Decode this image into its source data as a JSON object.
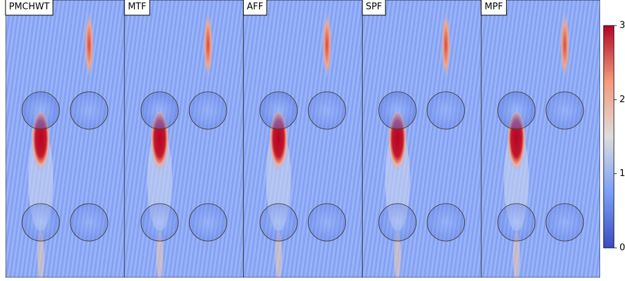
{
  "chart_data": {
    "type": "fieldmap",
    "panels": [
      "PMCHWT",
      "MTF",
      "AFF",
      "SPF",
      "MPF"
    ],
    "clim": [
      0,
      3
    ],
    "cticks": [
      0,
      1,
      2,
      3
    ]
  }
}
